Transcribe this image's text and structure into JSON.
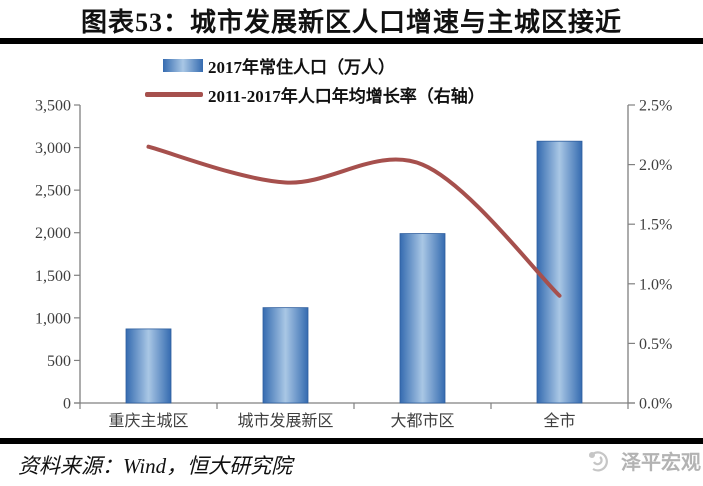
{
  "title": "图表53：城市发展新区人口增速与主城区接近",
  "legend": [
    {
      "label": "2017年常住人口（万人）",
      "type": "bar"
    },
    {
      "label": "2011-2017年人口年均增长率（右轴）",
      "type": "line"
    }
  ],
  "source": "资料来源：Wind，恒大研究院",
  "watermark": "泽平宏观",
  "colors": {
    "bar_edge": "#356BB0",
    "bar_center": "#A9C7E5",
    "bar_border": "#2E5E9E",
    "line": "#A6504D",
    "axis": "#808080",
    "label": "#3F3F3F",
    "watermark": "#B3B3B3",
    "rule": "#000000"
  },
  "chart_data": {
    "type": "bar",
    "categories": [
      "重庆主城区",
      "城市发展新区",
      "大都市区",
      "全市"
    ],
    "series": [
      {
        "name": "2017年常住人口（万人）",
        "type": "bar",
        "axis": "left",
        "values": [
          870,
          1120,
          1990,
          3075
        ]
      },
      {
        "name": "2011-2017年人口年均增长率（右轴）",
        "type": "line",
        "axis": "right",
        "values": [
          2.15,
          1.85,
          2.0,
          0.9
        ]
      }
    ],
    "left_axis": {
      "min": 0,
      "max": 3500,
      "step": 500,
      "ticks": [
        "3,500",
        "3,000",
        "2,500",
        "2,000",
        "1,500",
        "1,000",
        "500",
        "0"
      ]
    },
    "right_axis": {
      "min": 0,
      "max": 2.5,
      "step": 0.5,
      "ticks": [
        "2.5%",
        "2.0%",
        "1.5%",
        "1.0%",
        "0.5%",
        "0.0%"
      ]
    },
    "grid": false,
    "legend_position": "top",
    "title": "图表53：城市发展新区人口增速与主城区接近"
  }
}
